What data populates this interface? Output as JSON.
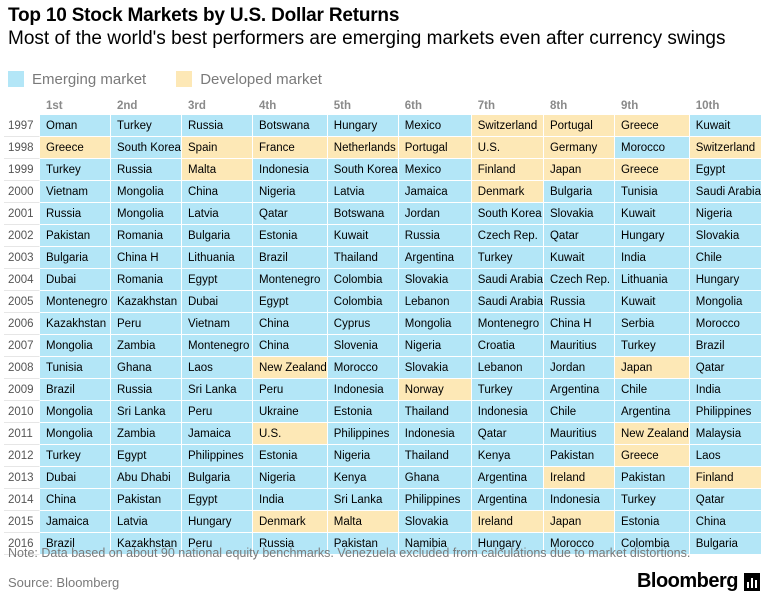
{
  "title": "Top 10 Stock Markets by U.S. Dollar Returns",
  "subtitle": "Most of the world's best performers are emerging markets even after currency swings",
  "legend": {
    "emerging": {
      "label": "Emerging market",
      "color": "#b3e6f7"
    },
    "developed": {
      "label": "Developed market",
      "color": "#fde8b6"
    }
  },
  "note": "Note: Data based on about 90 national equity benchmarks. Venezuela excluded from calculations due to market distortions.",
  "source": "Source: Bloomberg",
  "logo_text": "Bloomberg",
  "chart_data": {
    "type": "table",
    "title": "Top 10 Stock Markets by U.S. Dollar Returns",
    "columns": [
      "1st",
      "2nd",
      "3rd",
      "4th",
      "5th",
      "6th",
      "7th",
      "8th",
      "9th",
      "10th"
    ],
    "rows": [
      {
        "year": "1997",
        "cells": [
          "Oman",
          "Turkey",
          "Russia",
          "Botswana",
          "Hungary",
          "Mexico",
          "Switzerland",
          "Portugal",
          "Greece",
          "Kuwait"
        ],
        "types": [
          "E",
          "E",
          "E",
          "E",
          "E",
          "E",
          "D",
          "D",
          "D",
          "E"
        ]
      },
      {
        "year": "1998",
        "cells": [
          "Greece",
          "South Korea",
          "Spain",
          "France",
          "Netherlands",
          "Portugal",
          "U.S.",
          "Germany",
          "Morocco",
          "Switzerland"
        ],
        "types": [
          "D",
          "E",
          "D",
          "D",
          "D",
          "D",
          "D",
          "D",
          "E",
          "D"
        ]
      },
      {
        "year": "1999",
        "cells": [
          "Turkey",
          "Russia",
          "Malta",
          "Indonesia",
          "South Korea",
          "Mexico",
          "Finland",
          "Japan",
          "Greece",
          "Egypt"
        ],
        "types": [
          "E",
          "E",
          "D",
          "E",
          "E",
          "E",
          "D",
          "D",
          "D",
          "E"
        ]
      },
      {
        "year": "2000",
        "cells": [
          "Vietnam",
          "Mongolia",
          "China",
          "Nigeria",
          "Latvia",
          "Jamaica",
          "Denmark",
          "Bulgaria",
          "Tunisia",
          "Saudi Arabia"
        ],
        "types": [
          "E",
          "E",
          "E",
          "E",
          "E",
          "E",
          "D",
          "E",
          "E",
          "E"
        ]
      },
      {
        "year": "2001",
        "cells": [
          "Russia",
          "Mongolia",
          "Latvia",
          "Qatar",
          "Botswana",
          "Jordan",
          "South Korea",
          "Slovakia",
          "Kuwait",
          "Nigeria"
        ],
        "types": [
          "E",
          "E",
          "E",
          "E",
          "E",
          "E",
          "E",
          "E",
          "E",
          "E"
        ]
      },
      {
        "year": "2002",
        "cells": [
          "Pakistan",
          "Romania",
          "Bulgaria",
          "Estonia",
          "Kuwait",
          "Russia",
          "Czech Rep.",
          "Qatar",
          "Hungary",
          "Slovakia"
        ],
        "types": [
          "E",
          "E",
          "E",
          "E",
          "E",
          "E",
          "E",
          "E",
          "E",
          "E"
        ]
      },
      {
        "year": "2003",
        "cells": [
          "Bulgaria",
          "China H",
          "Lithuania",
          "Brazil",
          "Thailand",
          "Argentina",
          "Turkey",
          "Kuwait",
          "India",
          "Chile"
        ],
        "types": [
          "E",
          "E",
          "E",
          "E",
          "E",
          "E",
          "E",
          "E",
          "E",
          "E"
        ]
      },
      {
        "year": "2004",
        "cells": [
          "Dubai",
          "Romania",
          "Egypt",
          "Montenegro",
          "Colombia",
          "Slovakia",
          "Saudi Arabia",
          "Czech Rep.",
          "Lithuania",
          "Hungary"
        ],
        "types": [
          "E",
          "E",
          "E",
          "E",
          "E",
          "E",
          "E",
          "E",
          "E",
          "E"
        ]
      },
      {
        "year": "2005",
        "cells": [
          "Montenegro",
          "Kazakhstan",
          "Dubai",
          "Egypt",
          "Colombia",
          "Lebanon",
          "Saudi Arabia",
          "Russia",
          "Kuwait",
          "Mongolia"
        ],
        "types": [
          "E",
          "E",
          "E",
          "E",
          "E",
          "E",
          "E",
          "E",
          "E",
          "E"
        ]
      },
      {
        "year": "2006",
        "cells": [
          "Kazakhstan",
          "Peru",
          "Vietnam",
          "China",
          "Cyprus",
          "Mongolia",
          "Montenegro",
          "China H",
          "Serbia",
          "Morocco"
        ],
        "types": [
          "E",
          "E",
          "E",
          "E",
          "E",
          "E",
          "E",
          "E",
          "E",
          "E"
        ]
      },
      {
        "year": "2007",
        "cells": [
          "Mongolia",
          "Zambia",
          "Montenegro",
          "China",
          "Slovenia",
          "Nigeria",
          "Croatia",
          "Mauritius",
          "Turkey",
          "Brazil"
        ],
        "types": [
          "E",
          "E",
          "E",
          "E",
          "E",
          "E",
          "E",
          "E",
          "E",
          "E"
        ]
      },
      {
        "year": "2008",
        "cells": [
          "Tunisia",
          "Ghana",
          "Laos",
          "New Zealand",
          "Morocco",
          "Slovakia",
          "Lebanon",
          "Jordan",
          "Japan",
          "Qatar"
        ],
        "types": [
          "E",
          "E",
          "E",
          "D",
          "E",
          "E",
          "E",
          "E",
          "D",
          "E"
        ]
      },
      {
        "year": "2009",
        "cells": [
          "Brazil",
          "Russia",
          "Sri Lanka",
          "Peru",
          "Indonesia",
          "Norway",
          "Turkey",
          "Argentina",
          "Chile",
          "India"
        ],
        "types": [
          "E",
          "E",
          "E",
          "E",
          "E",
          "D",
          "E",
          "E",
          "E",
          "E"
        ]
      },
      {
        "year": "2010",
        "cells": [
          "Mongolia",
          "Sri Lanka",
          "Peru",
          "Ukraine",
          "Estonia",
          "Thailand",
          "Indonesia",
          "Chile",
          "Argentina",
          "Philippines"
        ],
        "types": [
          "E",
          "E",
          "E",
          "E",
          "E",
          "E",
          "E",
          "E",
          "E",
          "E"
        ]
      },
      {
        "year": "2011",
        "cells": [
          "Mongolia",
          "Zambia",
          "Jamaica",
          "U.S.",
          "Philippines",
          "Indonesia",
          "Qatar",
          "Mauritius",
          "New Zealand",
          "Malaysia"
        ],
        "types": [
          "E",
          "E",
          "E",
          "D",
          "E",
          "E",
          "E",
          "E",
          "D",
          "E"
        ]
      },
      {
        "year": "2012",
        "cells": [
          "Turkey",
          "Egypt",
          "Philippines",
          "Estonia",
          "Nigeria",
          "Thailand",
          "Kenya",
          "Pakistan",
          "Greece",
          "Laos"
        ],
        "types": [
          "E",
          "E",
          "E",
          "E",
          "E",
          "E",
          "E",
          "E",
          "D",
          "E"
        ]
      },
      {
        "year": "2013",
        "cells": [
          "Dubai",
          "Abu Dhabi",
          "Bulgaria",
          "Nigeria",
          "Kenya",
          "Ghana",
          "Argentina",
          "Ireland",
          "Pakistan",
          "Finland"
        ],
        "types": [
          "E",
          "E",
          "E",
          "E",
          "E",
          "E",
          "E",
          "D",
          "E",
          "D"
        ]
      },
      {
        "year": "2014",
        "cells": [
          "China",
          "Pakistan",
          "Egypt",
          "India",
          "Sri Lanka",
          "Philippines",
          "Argentina",
          "Indonesia",
          "Turkey",
          "Qatar"
        ],
        "types": [
          "E",
          "E",
          "E",
          "E",
          "E",
          "E",
          "E",
          "E",
          "E",
          "E"
        ]
      },
      {
        "year": "2015",
        "cells": [
          "Jamaica",
          "Latvia",
          "Hungary",
          "Denmark",
          "Malta",
          "Slovakia",
          "Ireland",
          "Japan",
          "Estonia",
          "China"
        ],
        "types": [
          "E",
          "E",
          "E",
          "D",
          "D",
          "E",
          "D",
          "D",
          "E",
          "E"
        ]
      },
      {
        "year": "2016",
        "cells": [
          "Brazil",
          "Kazakhstan",
          "Peru",
          "Russia",
          "Pakistan",
          "Namibia",
          "Hungary",
          "Morocco",
          "Colombia",
          "Bulgaria"
        ],
        "types": [
          "E",
          "E",
          "E",
          "E",
          "E",
          "E",
          "E",
          "E",
          "E",
          "E"
        ]
      }
    ]
  }
}
